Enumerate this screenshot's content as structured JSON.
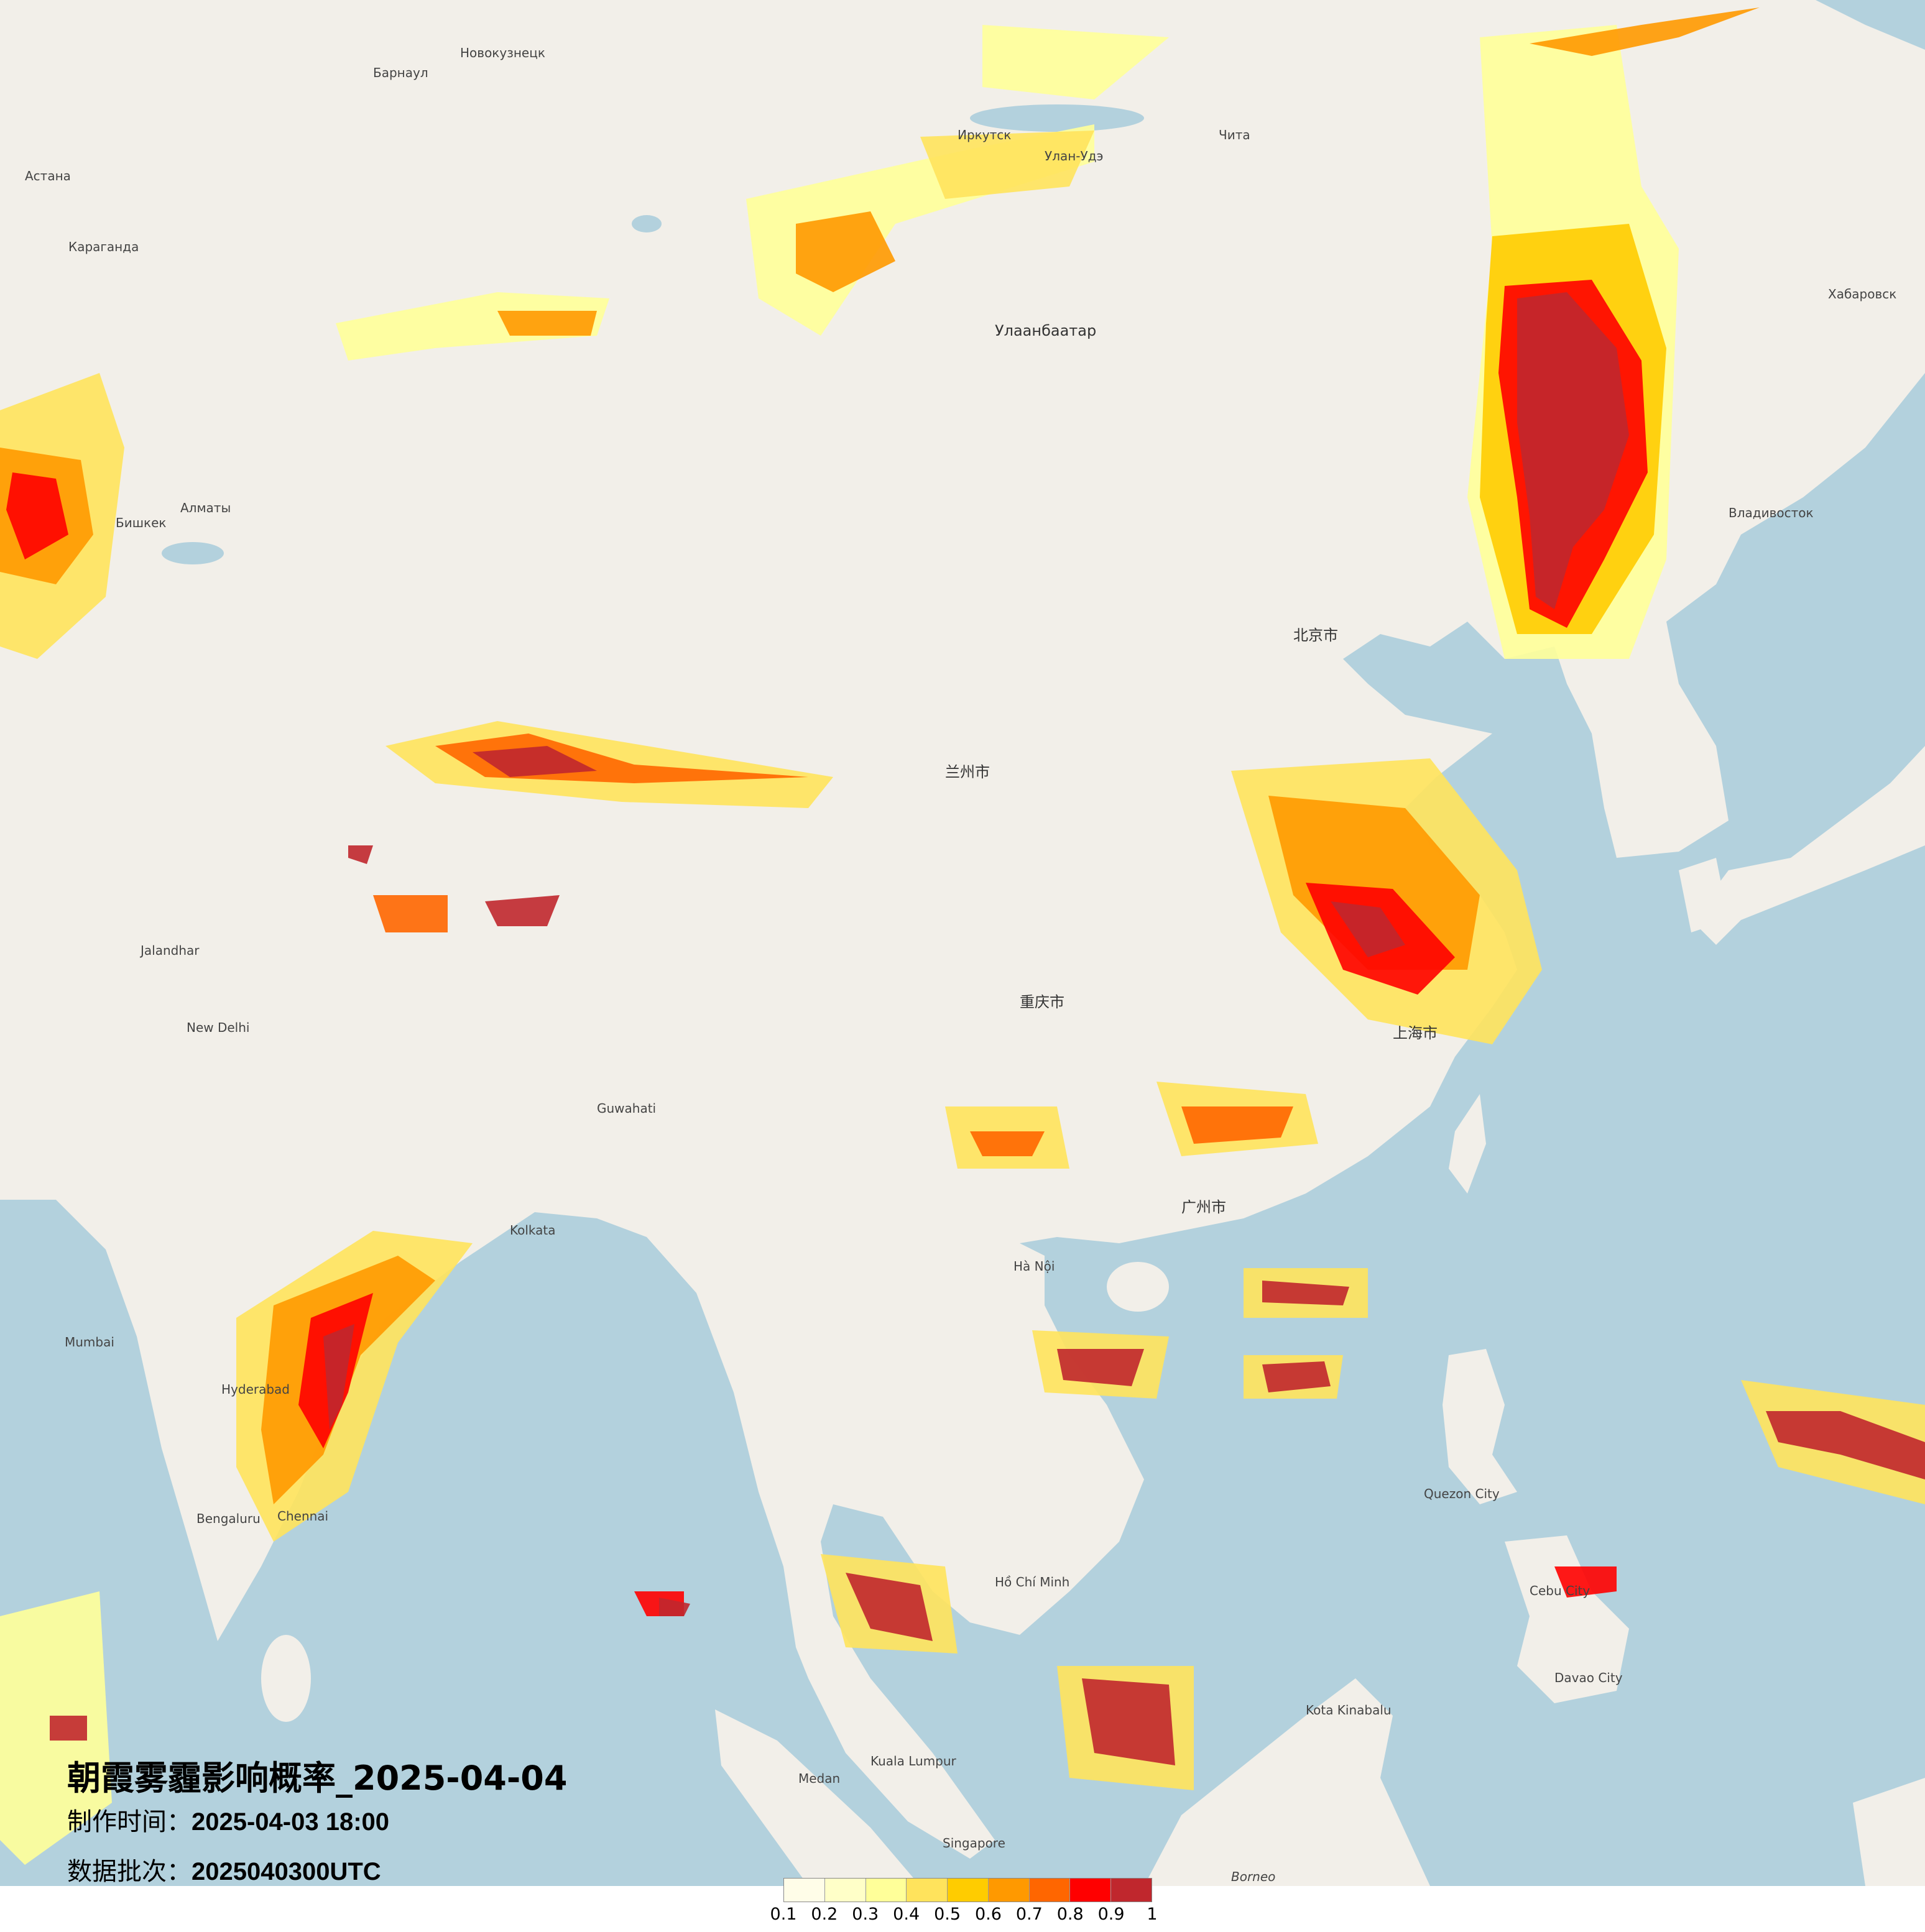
{
  "title": "朝霞雾霾影响概率_2025-04-04",
  "production_time": {
    "label": "制作时间：",
    "value": "2025-04-03 18:00"
  },
  "data_batch": {
    "label": "数据批次：",
    "value": "2025040300UTC"
  },
  "legend": {
    "colors": [
      "#fffde8",
      "#ffffc8",
      "#ffff99",
      "#ffe35c",
      "#ffcc00",
      "#ff9900",
      "#ff6600",
      "#ff0000",
      "#c0272d"
    ],
    "ticks": [
      "0.1",
      "0.2",
      "0.3",
      "0.4",
      "0.5",
      "0.6",
      "0.7",
      "0.8",
      "0.9",
      "1"
    ]
  },
  "map_colors": {
    "land": "#f2efe9",
    "sea": "#b3d1dd"
  },
  "places": {
    "ulaanbaatar": "Улаанбаатар",
    "irkutsk": "Иркутск",
    "novokuznetsk": "Новокузнецк",
    "barnaul": "Барнаул",
    "astana": "Астана",
    "karaganda": "Караганда",
    "almaty": "Алматы",
    "bishkek": "Бишкек",
    "khabarovsk": "Хабаровск",
    "vladivostok": "Владивосток",
    "ulan_ude": "Улан-Удэ",
    "chita": "Чита",
    "beijing": "北京市",
    "shanghai": "上海市",
    "guangzhou": "广州市",
    "chongqing": "重庆市",
    "lanzhou": "兰州市",
    "new_delhi": "New Delhi",
    "kolkata": "Kolkata",
    "mumbai": "Mumbai",
    "hyderabad": "Hyderabad",
    "bengaluru": "Bengaluru",
    "chennai": "Chennai",
    "ha_noi": "Hà Nội",
    "ho_chi_minh": "Hồ Chí Minh",
    "kuala_lumpur": "Kuala Lumpur",
    "singapore": "Singapore",
    "medan": "Medan",
    "quezon_city": "Quezon City",
    "cebu_city": "Cebu City",
    "davao_city": "Davao City",
    "kota_kinabalu": "Kota Kinabalu",
    "borneo": "Borneo",
    "guwahati": "Guwahati",
    "jalandhar": "Jalandhar"
  }
}
